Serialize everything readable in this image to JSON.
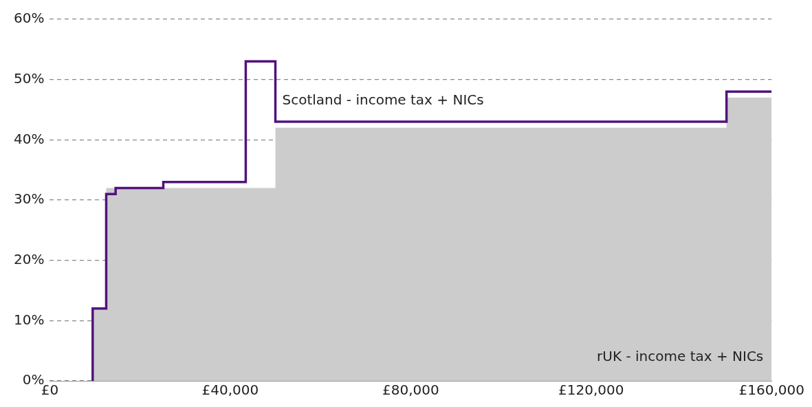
{
  "chart_data": {
    "type": "step",
    "xlim": [
      0,
      160000
    ],
    "ylim": [
      0,
      60
    ],
    "xticks": [
      {
        "value": 0,
        "label": "£0"
      },
      {
        "value": 40000,
        "label": "£40,000"
      },
      {
        "value": 80000,
        "label": "£80,000"
      },
      {
        "value": 120000,
        "label": "£120,000"
      },
      {
        "value": 160000,
        "label": "£160,000"
      }
    ],
    "yticks": [
      {
        "value": 0,
        "label": "0%"
      },
      {
        "value": 10,
        "label": "10%"
      },
      {
        "value": 20,
        "label": "20%"
      },
      {
        "value": 30,
        "label": "30%"
      },
      {
        "value": 40,
        "label": "40%"
      },
      {
        "value": 50,
        "label": "50%"
      },
      {
        "value": 60,
        "label": "60%"
      }
    ],
    "grid": "y",
    "legend": false,
    "series": [
      {
        "name": "rUK - income tax + NICs",
        "type": "area",
        "color": "#cccccc",
        "x": [
          9500,
          12500,
          50000,
          150000,
          160000
        ],
        "values": [
          12,
          32,
          42,
          47,
          47
        ]
      },
      {
        "name": "Scotland - income tax + NICs",
        "color": "#52127e",
        "x": [
          9500,
          9500,
          12500,
          14585,
          25158,
          43430,
          50000,
          150000,
          160000
        ],
        "values": [
          0,
          12,
          31,
          32,
          33,
          53,
          43,
          48,
          48
        ]
      }
    ]
  }
}
